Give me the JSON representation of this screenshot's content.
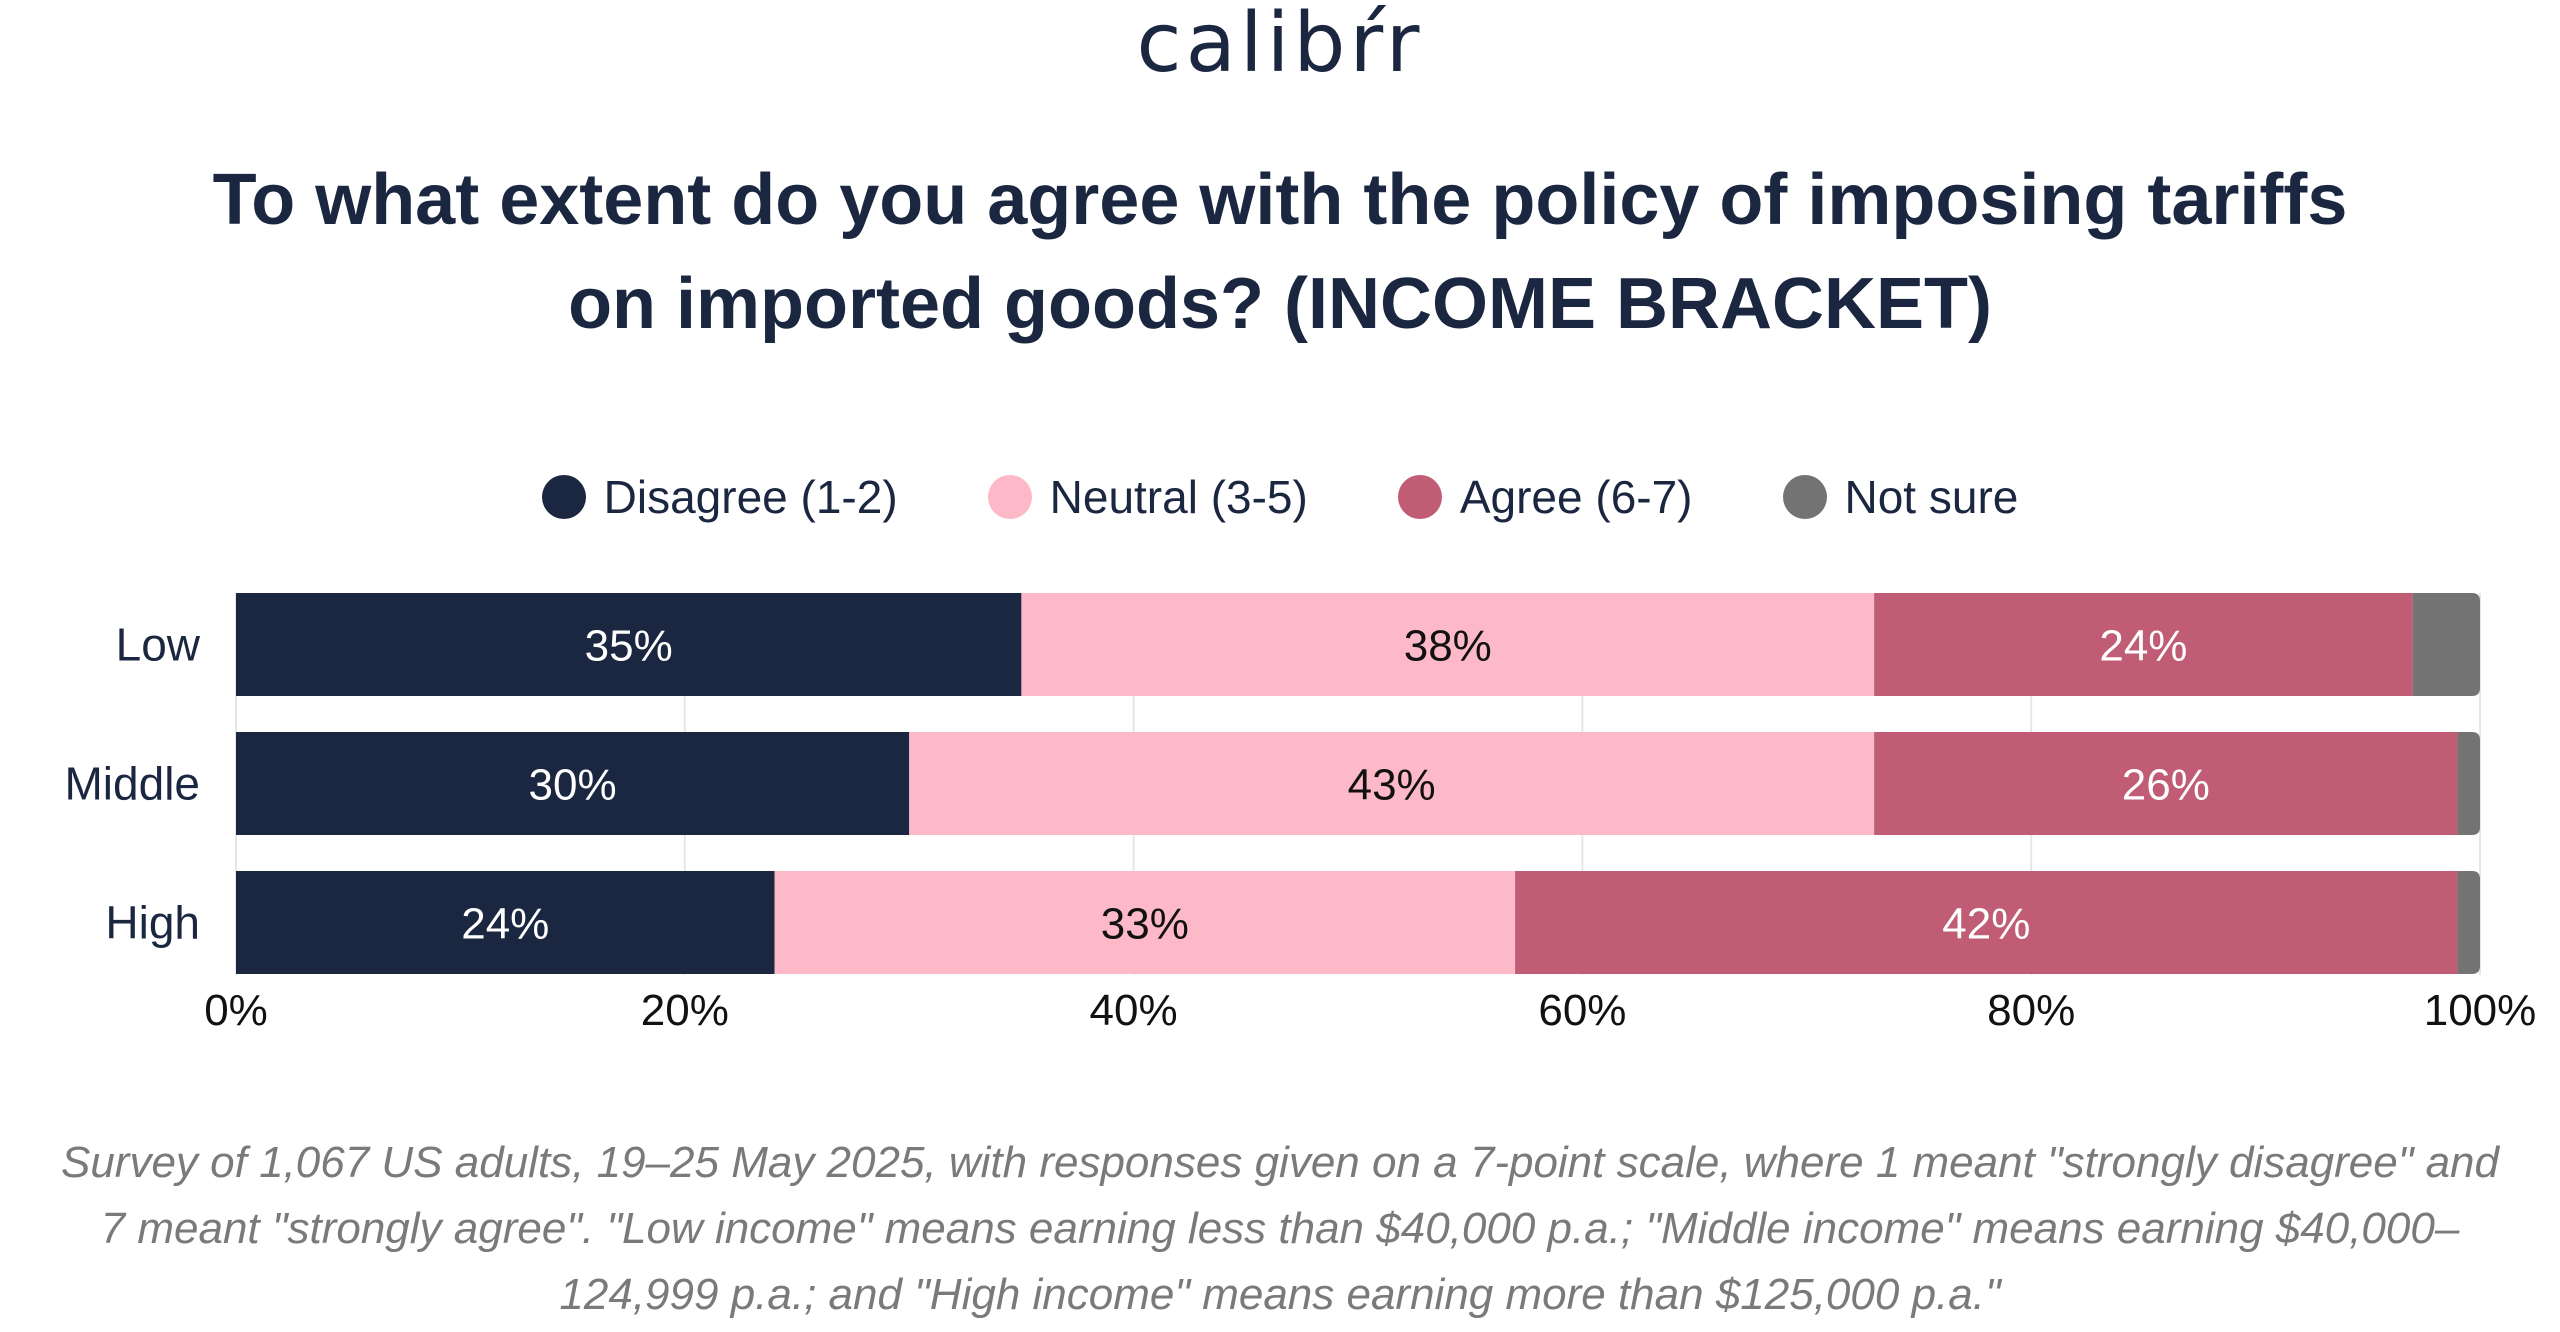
{
  "logo": "calibŕr",
  "title": "To what extent do you agree with the policy of imposing tariffs on imported goods? (INCOME BRACKET)",
  "footnote": "Survey of 1,067 US adults, 19–25 May 2025, with responses given on a 7-point scale, where 1 meant \"strongly disagree\" and 7 meant \"strongly agree\". \"Low income\" means earning less than $40,000 p.a.; \"Middle income\" means earning $40,000–124,999 p.a.; and \"High income\" means earning more than $125,000 p.a.\"",
  "chart_data": {
    "type": "bar",
    "orientation": "horizontal",
    "stacked": true,
    "categories": [
      "Low",
      "Middle",
      "High"
    ],
    "series": [
      {
        "name": "Disagree (1-2)",
        "color": "#1b2740",
        "label_color": "#ffffff",
        "values": [
          35,
          30,
          24
        ],
        "labels": [
          "35%",
          "30%",
          "24%"
        ]
      },
      {
        "name": "Neutral (3-5)",
        "color": "#fdb9c8",
        "label_color": "#111111",
        "values": [
          38,
          43,
          33
        ],
        "labels": [
          "38%",
          "43%",
          "33%"
        ]
      },
      {
        "name": "Agree (6-7)",
        "color": "#c05c74",
        "label_color": "#ffffff",
        "values": [
          24,
          26,
          42
        ],
        "labels": [
          "24%",
          "26%",
          "42%"
        ]
      },
      {
        "name": "Not sure",
        "color": "#737373",
        "label_color": "#ffffff",
        "values": [
          3,
          1,
          1
        ],
        "labels": [
          "",
          "",
          ""
        ]
      }
    ],
    "xlim": [
      0,
      100
    ],
    "xticks": [
      "0%",
      "20%",
      "40%",
      "60%",
      "80%",
      "100%"
    ],
    "grid": true,
    "legend_position": "top"
  }
}
